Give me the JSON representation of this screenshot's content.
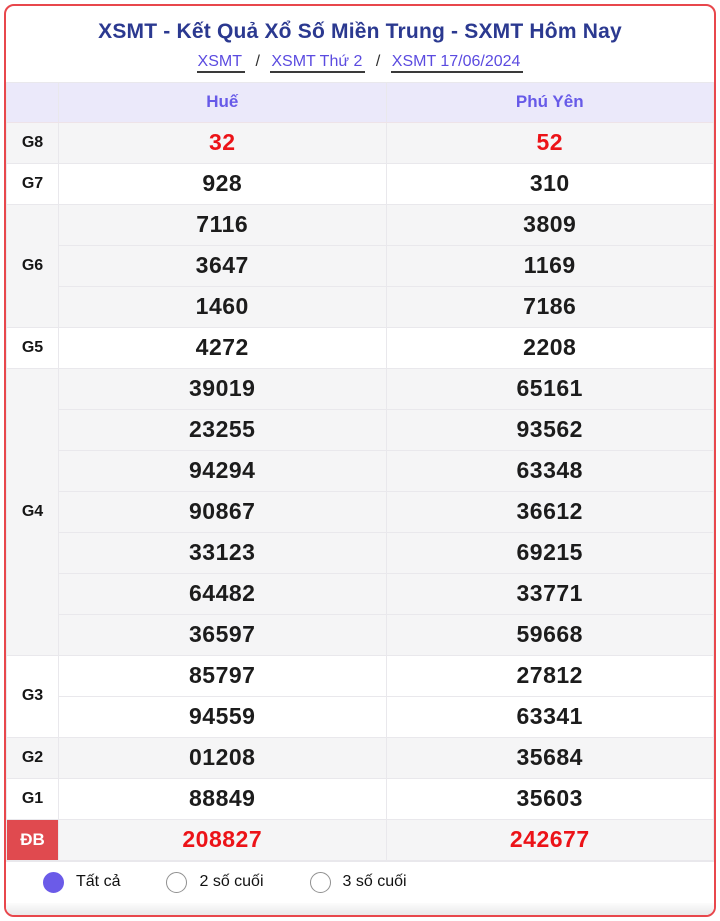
{
  "header": {
    "title": "XSMT - Kết Quả Xổ Số Miền Trung - SXMT Hôm Nay",
    "separator": "/",
    "breadcrumbs": [
      {
        "label": "XSMT"
      },
      {
        "label": "XSMT Thứ 2"
      },
      {
        "label": "XSMT 17/06/2024"
      }
    ]
  },
  "table": {
    "columns": [
      "Huế",
      "Phú Yên"
    ],
    "groups": [
      {
        "key": "g8",
        "prize": "G8",
        "shade": true,
        "red": true,
        "label_red": false,
        "values": [
          [
            "32",
            "52"
          ]
        ]
      },
      {
        "key": "g7",
        "prize": "G7",
        "shade": false,
        "red": false,
        "label_red": false,
        "values": [
          [
            "928",
            "310"
          ]
        ]
      },
      {
        "key": "g6",
        "prize": "G6",
        "shade": true,
        "red": false,
        "label_red": false,
        "values": [
          [
            "7116",
            "3809"
          ],
          [
            "3647",
            "1169"
          ],
          [
            "1460",
            "7186"
          ]
        ]
      },
      {
        "key": "g5",
        "prize": "G5",
        "shade": false,
        "red": false,
        "label_red": false,
        "values": [
          [
            "4272",
            "2208"
          ]
        ]
      },
      {
        "key": "g4",
        "prize": "G4",
        "shade": true,
        "red": false,
        "label_red": false,
        "values": [
          [
            "39019",
            "65161"
          ],
          [
            "23255",
            "93562"
          ],
          [
            "94294",
            "63348"
          ],
          [
            "90867",
            "36612"
          ],
          [
            "33123",
            "69215"
          ],
          [
            "64482",
            "33771"
          ],
          [
            "36597",
            "59668"
          ]
        ]
      },
      {
        "key": "g3",
        "prize": "G3",
        "shade": false,
        "red": false,
        "label_red": false,
        "values": [
          [
            "85797",
            "27812"
          ],
          [
            "94559",
            "63341"
          ]
        ]
      },
      {
        "key": "g2",
        "prize": "G2",
        "shade": true,
        "red": false,
        "label_red": false,
        "values": [
          [
            "01208",
            "35684"
          ]
        ]
      },
      {
        "key": "g1",
        "prize": "G1",
        "shade": false,
        "red": false,
        "label_red": false,
        "values": [
          [
            "88849",
            "35603"
          ]
        ]
      },
      {
        "key": "db",
        "prize": "ĐB",
        "shade": true,
        "red": true,
        "label_red": true,
        "values": [
          [
            "208827",
            "242677"
          ]
        ]
      }
    ]
  },
  "footer": {
    "options": [
      {
        "label": "Tất cả",
        "selected": true
      },
      {
        "label": "2 số cuối",
        "selected": false
      },
      {
        "label": "3 số cuối",
        "selected": false
      }
    ]
  },
  "colors": {
    "card_border": "#e8474c",
    "title_navy": "#2b3990",
    "link_purple": "#5b4be0",
    "column_header_purple": "#675ae8",
    "column_header_bg": "#ebe9fa",
    "shade_row_bg": "#f5f5f6",
    "value_red": "#ec1318",
    "db_label_bg": "#e04a4f",
    "radio_selected": "#6b5be8"
  }
}
